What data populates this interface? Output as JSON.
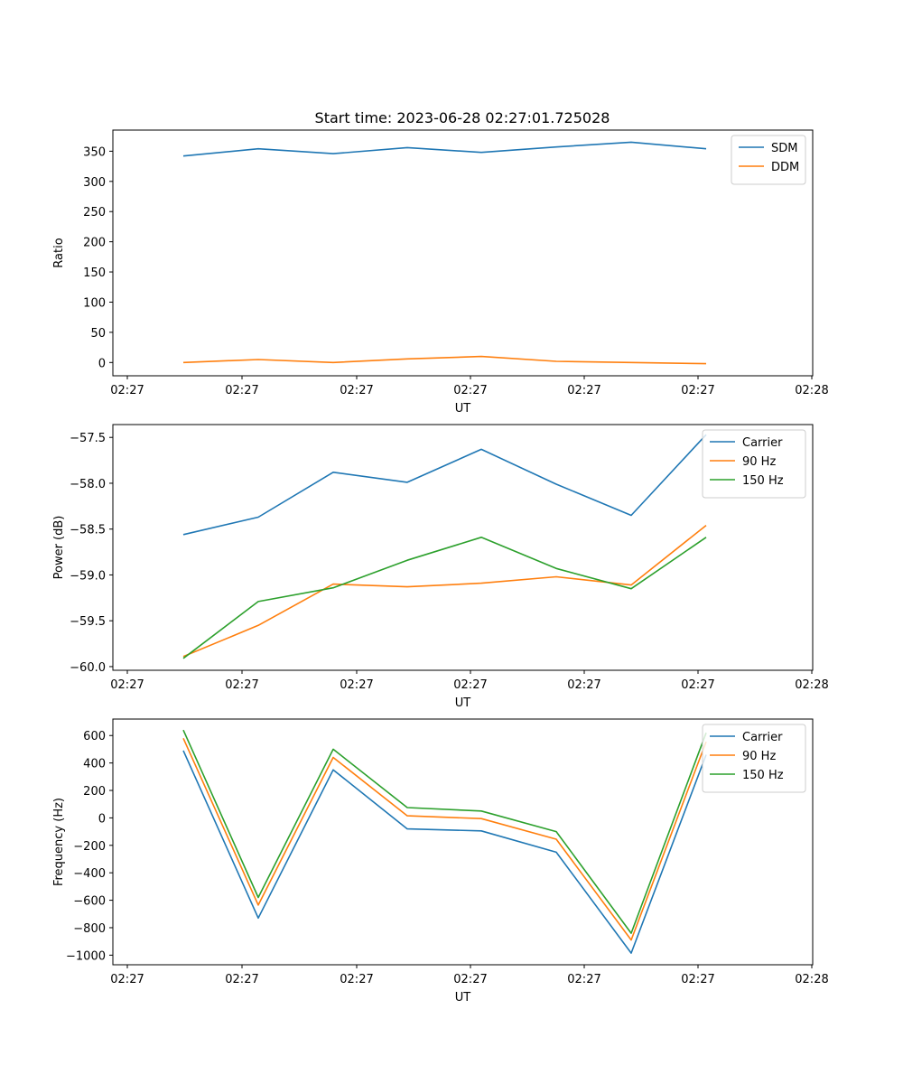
{
  "figure_title": "Start time: 2023-06-28 02:27:01.725028",
  "colors": {
    "blue": "#1f77b4",
    "orange": "#ff7f0e",
    "green": "#2ca02c"
  },
  "chart_data": [
    {
      "type": "line",
      "title": "Start time: 2023-06-28 02:27:01.725028",
      "xlabel": "UT",
      "ylabel": "Ratio",
      "x_tick_labels": [
        "02:27",
        "02:27",
        "02:27",
        "02:27",
        "02:27",
        "02:27",
        "02:28"
      ],
      "y_ticks": [
        0,
        50,
        100,
        150,
        200,
        250,
        300,
        350
      ],
      "ylim": [
        -22,
        385
      ],
      "grid": false,
      "legend": "top-right",
      "series": [
        {
          "name": "SDM",
          "color": "#1f77b4",
          "values": [
            342,
            354,
            346,
            356,
            348,
            357,
            365,
            354
          ]
        },
        {
          "name": "DDM",
          "color": "#ff7f0e",
          "values": [
            0,
            5,
            0,
            6,
            10,
            2,
            0,
            -2
          ]
        }
      ]
    },
    {
      "type": "line",
      "xlabel": "UT",
      "ylabel": "Power (dB)",
      "x_tick_labels": [
        "02:27",
        "02:27",
        "02:27",
        "02:27",
        "02:27",
        "02:27",
        "02:28"
      ],
      "y_ticks": [
        -60.0,
        -59.5,
        -59.0,
        -58.5,
        -58.0,
        -57.5
      ],
      "ylim": [
        -60.04,
        -57.36
      ],
      "grid": false,
      "legend": "top-right",
      "series": [
        {
          "name": "Carrier",
          "color": "#1f77b4",
          "values": [
            -58.56,
            -58.37,
            -57.88,
            -57.99,
            -57.63,
            -58.01,
            -58.35,
            -57.47
          ]
        },
        {
          "name": "90 Hz",
          "color": "#ff7f0e",
          "values": [
            -59.89,
            -59.55,
            -59.1,
            -59.13,
            -59.09,
            -59.02,
            -59.11,
            -58.46
          ]
        },
        {
          "name": "150 Hz",
          "color": "#2ca02c",
          "values": [
            -59.91,
            -59.29,
            -59.14,
            -58.84,
            -58.59,
            -58.93,
            -59.15,
            -58.59
          ]
        }
      ]
    },
    {
      "type": "line",
      "xlabel": "UT",
      "ylabel": "Frequency (Hz)",
      "x_tick_labels": [
        "02:27",
        "02:27",
        "02:27",
        "02:27",
        "02:27",
        "02:27",
        "02:28"
      ],
      "y_ticks": [
        -1000,
        -800,
        -600,
        -400,
        -200,
        0,
        200,
        400,
        600
      ],
      "ylim": [
        -1070,
        720
      ],
      "grid": false,
      "legend": "top-right",
      "series": [
        {
          "name": "Carrier",
          "color": "#1f77b4",
          "values": [
            490,
            -730,
            350,
            -80,
            -95,
            -250,
            -985,
            460
          ]
        },
        {
          "name": "90 Hz",
          "color": "#ff7f0e",
          "values": [
            580,
            -635,
            440,
            15,
            -5,
            -155,
            -890,
            555
          ]
        },
        {
          "name": "150 Hz",
          "color": "#2ca02c",
          "values": [
            640,
            -580,
            500,
            75,
            50,
            -100,
            -840,
            620
          ]
        }
      ]
    }
  ]
}
